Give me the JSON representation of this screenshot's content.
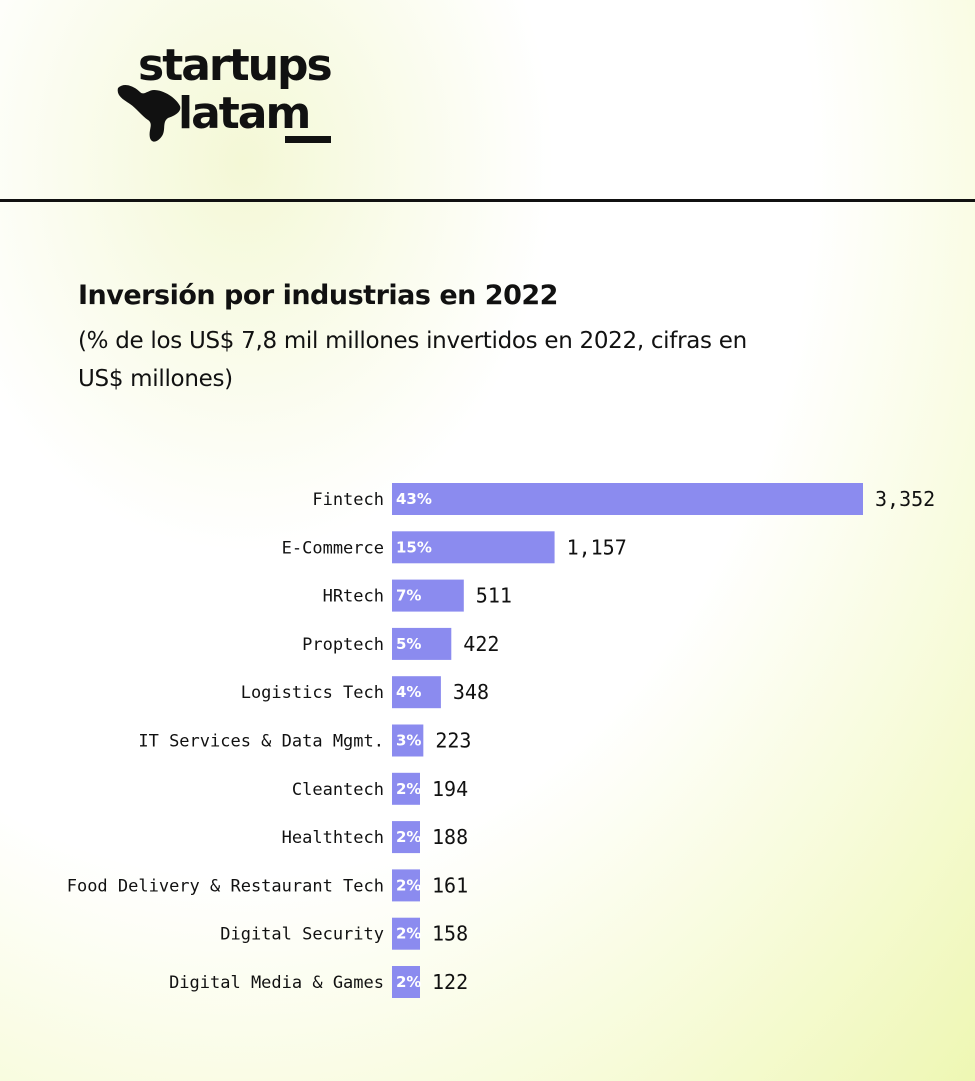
{
  "logo": {
    "line1": "startups",
    "line2": "latam",
    "icon": "latin-america-map-icon"
  },
  "colors": {
    "bar": "#8b8bef",
    "text": "#111111",
    "divider": "#111111"
  },
  "chart_data": {
    "type": "bar",
    "orientation": "horizontal",
    "title": "Inversión por industrias en 2022",
    "subtitle": "(% de los US$ 7,8 mil millones invertidos en 2022, cifras en US$ millones)",
    "categories": [
      "Fintech",
      "E-Commerce",
      "HRtech",
      "Proptech",
      "Logistics Tech",
      "IT Services & Data Mgmt.",
      "Cleantech",
      "Healthtech",
      "Food Delivery & Restaurant Tech",
      "Digital Security",
      "Digital Media & Games"
    ],
    "values": [
      3352,
      1157,
      511,
      422,
      348,
      223,
      194,
      188,
      161,
      158,
      122
    ],
    "value_labels": [
      "3,352",
      "1,157",
      "511",
      "422",
      "348",
      "223",
      "194",
      "188",
      "161",
      "158",
      "122"
    ],
    "percent_labels": [
      "43%",
      "15%",
      "7%",
      "5%",
      "4%",
      "3%",
      "2%",
      "2%",
      "2%",
      "2%",
      "2%"
    ],
    "xlim": [
      0,
      3352
    ],
    "grid": false,
    "legend": "none"
  }
}
